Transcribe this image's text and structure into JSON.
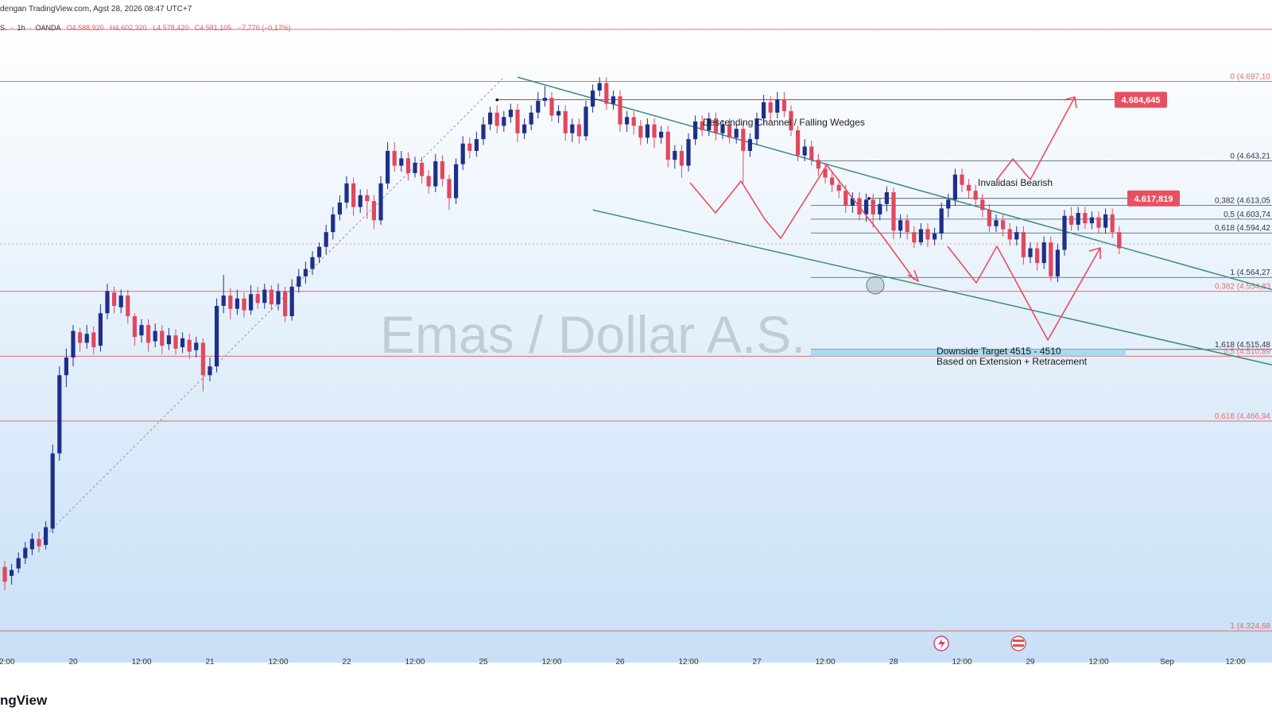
{
  "header": {
    "published": "dengan TradingView.com, Agst 28, 2026 08:47 UTC+7",
    "symbol_prefix": "S.",
    "timeframe": "1h",
    "exchange": "OANDA",
    "open": "O4.588,920",
    "high": "H4.602,320",
    "low": "L4.578,420",
    "close": "C4.581,105",
    "change": "−7,770 (−0,17%)"
  },
  "watermark": "Emas / Dollar A.S.",
  "brand": "ngView",
  "colors": {
    "bull": "#1e2f8a",
    "bear": "#e0485e",
    "level": "#e56b6b",
    "channel": "#3f8a84",
    "projection": "#ef4a5c",
    "target_zone": "#9fd8ee",
    "pill": "#e8505f",
    "bg_top": "#ffffff",
    "bg_bottom": "#c8e0f7"
  },
  "chart_data": {
    "type": "candlestick",
    "title": "Emas / Dollar A.S.",
    "timeframe": "1h",
    "ylim": [
      4300,
      4720
    ],
    "x_ticks": [
      "12:00",
      "20",
      "12:00",
      "21",
      "12:00",
      "22",
      "12:00",
      "25",
      "12:00",
      "26",
      "12:00",
      "27",
      "12:00",
      "28",
      "12:00",
      "29",
      "12:00",
      "Sep",
      "12:00"
    ],
    "x_tick_slots": [
      0,
      10,
      20,
      30,
      40,
      50,
      60,
      70,
      80,
      90,
      100,
      110,
      120,
      130,
      140,
      150,
      160,
      170,
      180
    ],
    "candles": [
      [
        4368,
        4358,
        4372,
        4352
      ],
      [
        4362,
        4366,
        4370,
        4356
      ],
      [
        4367,
        4374,
        4378,
        4364
      ],
      [
        4374,
        4381,
        4385,
        4370
      ],
      [
        4380,
        4387,
        4391,
        4376
      ],
      [
        4387,
        4382,
        4392,
        4378
      ],
      [
        4383,
        4395,
        4399,
        4380
      ],
      [
        4394,
        4445,
        4451,
        4391
      ],
      [
        4445,
        4498,
        4504,
        4440
      ],
      [
        4498,
        4510,
        4516,
        4490
      ],
      [
        4510,
        4528,
        4532,
        4504
      ],
      [
        4527,
        4520,
        4530,
        4514
      ],
      [
        4520,
        4526,
        4532,
        4516
      ],
      [
        4527,
        4517,
        4531,
        4512
      ],
      [
        4518,
        4540,
        4546,
        4514
      ],
      [
        4540,
        4555,
        4560,
        4536
      ],
      [
        4554,
        4545,
        4558,
        4540
      ],
      [
        4544,
        4552,
        4556,
        4540
      ],
      [
        4552,
        4538,
        4556,
        4533
      ],
      [
        4538,
        4524,
        4540,
        4518
      ],
      [
        4525,
        4532,
        4536,
        4520
      ],
      [
        4532,
        4520,
        4536,
        4514
      ],
      [
        4521,
        4528,
        4533,
        4517
      ],
      [
        4528,
        4518,
        4532,
        4512
      ],
      [
        4519,
        4525,
        4530,
        4515
      ],
      [
        4525,
        4516,
        4529,
        4512
      ],
      [
        4517,
        4523,
        4527,
        4513
      ],
      [
        4522,
        4514,
        4526,
        4509
      ],
      [
        4515,
        4520,
        4524,
        4510
      ],
      [
        4520,
        4498,
        4523,
        4487
      ],
      [
        4498,
        4504,
        4510,
        4494
      ],
      [
        4504,
        4545,
        4550,
        4500
      ],
      [
        4545,
        4552,
        4566,
        4540
      ],
      [
        4552,
        4543,
        4557,
        4536
      ],
      [
        4543,
        4550,
        4556,
        4539
      ],
      [
        4550,
        4542,
        4554,
        4537
      ],
      [
        4542,
        4553,
        4559,
        4539
      ],
      [
        4553,
        4547,
        4558,
        4543
      ],
      [
        4547,
        4556,
        4560,
        4543
      ],
      [
        4556,
        4546,
        4559,
        4542
      ],
      [
        4546,
        4555,
        4560,
        4542
      ],
      [
        4555,
        4538,
        4558,
        4534
      ],
      [
        4538,
        4558,
        4563,
        4535
      ],
      [
        4558,
        4565,
        4570,
        4554
      ],
      [
        4565,
        4570,
        4575,
        4560
      ],
      [
        4570,
        4578,
        4582,
        4566
      ],
      [
        4578,
        4585,
        4588,
        4574
      ],
      [
        4585,
        4595,
        4600,
        4580
      ],
      [
        4595,
        4607,
        4612,
        4590
      ],
      [
        4607,
        4615,
        4620,
        4603
      ],
      [
        4615,
        4628,
        4633,
        4611
      ],
      [
        4628,
        4612,
        4632,
        4606
      ],
      [
        4612,
        4620,
        4624,
        4608
      ],
      [
        4620,
        4616,
        4624,
        4604
      ],
      [
        4616,
        4603,
        4620,
        4597
      ],
      [
        4603,
        4628,
        4633,
        4600
      ],
      [
        4628,
        4650,
        4656,
        4624
      ],
      [
        4650,
        4640,
        4656,
        4636
      ],
      [
        4640,
        4645,
        4650,
        4636
      ],
      [
        4645,
        4635,
        4649,
        4630
      ],
      [
        4635,
        4642,
        4646,
        4632
      ],
      [
        4642,
        4633,
        4646,
        4628
      ],
      [
        4633,
        4626,
        4637,
        4621
      ],
      [
        4626,
        4643,
        4648,
        4622
      ],
      [
        4643,
        4631,
        4647,
        4626
      ],
      [
        4631,
        4618,
        4634,
        4610
      ],
      [
        4618,
        4641,
        4645,
        4614
      ],
      [
        4641,
        4655,
        4660,
        4637
      ],
      [
        4655,
        4650,
        4659,
        4645
      ],
      [
        4650,
        4658,
        4663,
        4646
      ],
      [
        4658,
        4668,
        4673,
        4654
      ],
      [
        4668,
        4676,
        4680,
        4664
      ],
      [
        4676,
        4667,
        4681,
        4662
      ],
      [
        4667,
        4673,
        4677,
        4663
      ],
      [
        4673,
        4678,
        4682,
        4669
      ],
      [
        4678,
        4662,
        4682,
        4656
      ],
      [
        4662,
        4668,
        4672,
        4658
      ],
      [
        4668,
        4676,
        4681,
        4664
      ],
      [
        4676,
        4684,
        4690,
        4672
      ],
      [
        4684,
        4686,
        4694,
        4680
      ],
      [
        4686,
        4674,
        4690,
        4670
      ],
      [
        4674,
        4677,
        4681,
        4669
      ],
      [
        4677,
        4662,
        4681,
        4657
      ],
      [
        4662,
        4668,
        4672,
        4656
      ],
      [
        4668,
        4660,
        4672,
        4655
      ],
      [
        4660,
        4680,
        4684,
        4657
      ],
      [
        4680,
        4691,
        4695,
        4676
      ],
      [
        4691,
        4696,
        4700,
        4687
      ],
      [
        4696,
        4682,
        4700,
        4678
      ],
      [
        4682,
        4687,
        4691,
        4678
      ],
      [
        4687,
        4668,
        4691,
        4663
      ],
      [
        4668,
        4673,
        4677,
        4663
      ],
      [
        4673,
        4667,
        4677,
        4661
      ],
      [
        4667,
        4659,
        4671,
        4654
      ],
      [
        4659,
        4668,
        4672,
        4655
      ],
      [
        4668,
        4659,
        4672,
        4652
      ],
      [
        4659,
        4663,
        4667,
        4655
      ],
      [
        4663,
        4644,
        4667,
        4639
      ],
      [
        4644,
        4650,
        4654,
        4638
      ],
      [
        4650,
        4640,
        4654,
        4632
      ],
      [
        4640,
        4658,
        4662,
        4636
      ],
      [
        4658,
        4670,
        4674,
        4654
      ],
      [
        4670,
        4664,
        4674,
        4660
      ],
      [
        4664,
        4672,
        4676,
        4660
      ],
      [
        4672,
        4662,
        4676,
        4657
      ],
      [
        4662,
        4668,
        4671,
        4658
      ],
      [
        4668,
        4659,
        4672,
        4655
      ],
      [
        4659,
        4665,
        4669,
        4655
      ],
      [
        4665,
        4650,
        4669,
        4628
      ],
      [
        4650,
        4658,
        4662,
        4646
      ],
      [
        4658,
        4672,
        4676,
        4654
      ],
      [
        4672,
        4683,
        4688,
        4668
      ],
      [
        4683,
        4676,
        4687,
        4670
      ],
      [
        4676,
        4685,
        4690,
        4672
      ],
      [
        4685,
        4677,
        4690,
        4673
      ],
      [
        4677,
        4664,
        4681,
        4660
      ],
      [
        4664,
        4647,
        4667,
        4643
      ],
      [
        4647,
        4653,
        4658,
        4643
      ],
      [
        4653,
        4644,
        4657,
        4640
      ],
      [
        4644,
        4638,
        4648,
        4633
      ],
      [
        4638,
        4632,
        4642,
        4628
      ],
      [
        4632,
        4627,
        4636,
        4622
      ],
      [
        4627,
        4623,
        4631,
        4618
      ],
      [
        4623,
        4613,
        4627,
        4608
      ],
      [
        4613,
        4618,
        4622,
        4608
      ],
      [
        4618,
        4607,
        4622,
        4603
      ],
      [
        4607,
        4617,
        4621,
        4602
      ],
      [
        4617,
        4607,
        4621,
        4598
      ],
      [
        4607,
        4614,
        4618,
        4603
      ],
      [
        4614,
        4622,
        4626,
        4609
      ],
      [
        4622,
        4596,
        4625,
        4590
      ],
      [
        4596,
        4603,
        4607,
        4591
      ],
      [
        4603,
        4595,
        4607,
        4590
      ],
      [
        4595,
        4588,
        4599,
        4584
      ],
      [
        4588,
        4597,
        4601,
        4586
      ],
      [
        4597,
        4590,
        4601,
        4585
      ],
      [
        4590,
        4594,
        4598,
        4586
      ],
      [
        4594,
        4611,
        4615,
        4590
      ],
      [
        4611,
        4617,
        4621,
        4605
      ],
      [
        4617,
        4634,
        4638,
        4613
      ],
      [
        4634,
        4627,
        4638,
        4622
      ],
      [
        4627,
        4623,
        4631,
        4618
      ],
      [
        4623,
        4617,
        4627,
        4612
      ],
      [
        4617,
        4610,
        4621,
        4605
      ],
      [
        4610,
        4599,
        4614,
        4595
      ],
      [
        4599,
        4603,
        4607,
        4595
      ],
      [
        4603,
        4597,
        4607,
        4592
      ],
      [
        4597,
        4590,
        4601,
        4586
      ],
      [
        4590,
        4595,
        4599,
        4586
      ],
      [
        4595,
        4578,
        4599,
        4573
      ],
      [
        4578,
        4584,
        4588,
        4574
      ],
      [
        4584,
        4574,
        4588,
        4569
      ],
      [
        4574,
        4588,
        4592,
        4570
      ],
      [
        4588,
        4565,
        4592,
        4562
      ],
      [
        4565,
        4583,
        4587,
        4561
      ],
      [
        4583,
        4606,
        4610,
        4579
      ],
      [
        4606,
        4600,
        4612,
        4596
      ],
      [
        4600,
        4608,
        4612,
        4596
      ],
      [
        4608,
        4601,
        4612,
        4597
      ],
      [
        4601,
        4605,
        4609,
        4597
      ],
      [
        4605,
        4598,
        4609,
        4594
      ],
      [
        4598,
        4607,
        4611,
        4594
      ],
      [
        4607,
        4595,
        4611,
        4591
      ],
      [
        4595,
        4584,
        4599,
        4580
      ]
    ],
    "price_levels": [
      {
        "label": "0 (4.697,10",
        "value": 4697.1,
        "line": true
      },
      {
        "label": "0 (4.643,21",
        "value": 4643.21,
        "line": false
      },
      {
        "label": "0,382 (4.613,05",
        "value": 4613.05,
        "line": false
      },
      {
        "label": "0,5 (4.603,74",
        "value": 4603.74,
        "line": false
      },
      {
        "label": "0,618 (4.594,42",
        "value": 4594.42,
        "line": false
      },
      {
        "label": "1 (4.564,27",
        "value": 4564.27,
        "line": false
      },
      {
        "label": "0,382 (4.554,83",
        "value": 4554.83,
        "line": true
      },
      {
        "label": "1,618 (4.515,48",
        "value": 4515.48,
        "line": false
      },
      {
        "label": "0,5 (4.510,89",
        "value": 4510.89,
        "line": true
      },
      {
        "label": "0,618 (4.466,94",
        "value": 4466.94,
        "line": true
      },
      {
        "label": "1 (4.324,68",
        "value": 4324.68,
        "line": true
      }
    ],
    "price_tags": [
      {
        "label": "4.684,645",
        "value": 4684.645
      },
      {
        "label": "4.617,819",
        "value": 4617.819
      }
    ],
    "annotations": {
      "channel": "Descending Channel / Falling Wedges",
      "invalidation": "Invalidasi Bearish",
      "target_line1": "Downside Target 4515 - 4510",
      "target_line2": "Based on Extension + Retracement"
    }
  }
}
